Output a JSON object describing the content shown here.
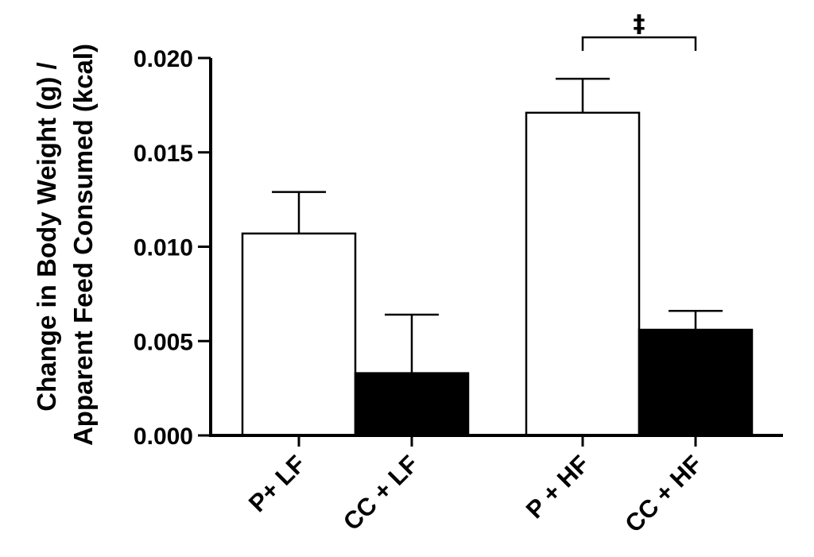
{
  "chart_data": {
    "type": "bar",
    "categories": [
      "P+ LF",
      "CC + LF",
      "P + HF",
      "CC + HF"
    ],
    "values": [
      0.0107,
      0.0033,
      0.0171,
      0.0056
    ],
    "errors": [
      0.0022,
      0.0031,
      0.0018,
      0.001
    ],
    "bar_colors": [
      "#ffffff",
      "#000000",
      "#ffffff",
      "#000000"
    ],
    "ylabel_line1": "Change in Body Weight (g) /",
    "ylabel_line2": "Apparent Feed Consumed (kcal)",
    "ylim": [
      0,
      0.02
    ],
    "yticks": [
      "0.000",
      "0.005",
      "0.010",
      "0.015",
      "0.020"
    ],
    "ytick_values": [
      0,
      0.005,
      0.01,
      0.015,
      0.02
    ],
    "annotation": {
      "symbol": "‡",
      "between": [
        2,
        3
      ]
    },
    "grid": false
  }
}
